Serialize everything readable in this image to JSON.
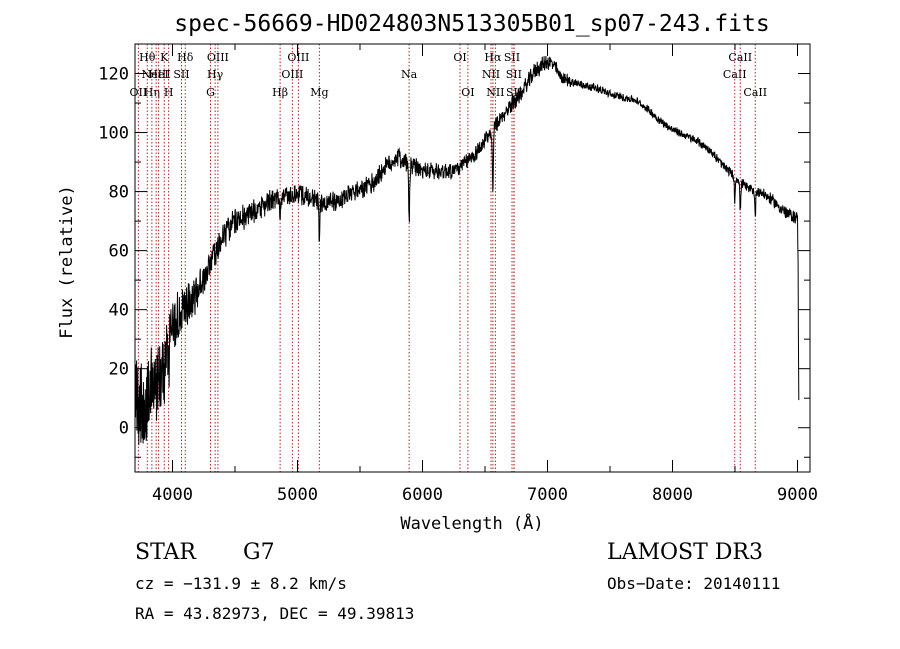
{
  "chart_data": {
    "type": "line",
    "title": "spec-56669-HD024803N513305B01_sp07-243.fits",
    "xlabel": "Wavelength (Å)",
    "ylabel": "Flux (relative)",
    "xlim": [
      3700,
      9100
    ],
    "ylim": [
      -15,
      130
    ],
    "xticks": [
      4000,
      5000,
      6000,
      7000,
      8000,
      9000
    ],
    "yticks": [
      0,
      20,
      40,
      60,
      80,
      100,
      120
    ],
    "grid": false,
    "series": [
      {
        "name": "spectrum",
        "anchors": [
          [
            3700,
            5
          ],
          [
            3740,
            10
          ],
          [
            3780,
            5
          ],
          [
            3820,
            12
          ],
          [
            3860,
            15
          ],
          [
            3900,
            20
          ],
          [
            3950,
            28
          ],
          [
            4000,
            33
          ],
          [
            4050,
            37
          ],
          [
            4100,
            40
          ],
          [
            4150,
            42
          ],
          [
            4200,
            46
          ],
          [
            4250,
            50
          ],
          [
            4300,
            55
          ],
          [
            4350,
            60
          ],
          [
            4400,
            65
          ],
          [
            4450,
            68
          ],
          [
            4500,
            70
          ],
          [
            4600,
            72
          ],
          [
            4700,
            74
          ],
          [
            4800,
            77
          ],
          [
            4900,
            78
          ],
          [
            5000,
            79
          ],
          [
            5100,
            78
          ],
          [
            5200,
            76
          ],
          [
            5300,
            77
          ],
          [
            5400,
            79
          ],
          [
            5500,
            80
          ],
          [
            5600,
            83
          ],
          [
            5700,
            88
          ],
          [
            5800,
            92
          ],
          [
            5900,
            89
          ],
          [
            6000,
            87
          ],
          [
            6100,
            87
          ],
          [
            6200,
            87
          ],
          [
            6300,
            88
          ],
          [
            6400,
            92
          ],
          [
            6500,
            97
          ],
          [
            6600,
            103
          ],
          [
            6700,
            109
          ],
          [
            6800,
            114
          ],
          [
            6900,
            121
          ],
          [
            7000,
            124
          ],
          [
            7050,
            123
          ],
          [
            7100,
            119
          ],
          [
            7200,
            117
          ],
          [
            7300,
            116
          ],
          [
            7400,
            115
          ],
          [
            7500,
            113
          ],
          [
            7600,
            112
          ],
          [
            7700,
            111
          ],
          [
            7800,
            108
          ],
          [
            7900,
            104
          ],
          [
            8000,
            101
          ],
          [
            8100,
            99
          ],
          [
            8200,
            97
          ],
          [
            8300,
            94
          ],
          [
            8400,
            89
          ],
          [
            8500,
            85
          ],
          [
            8600,
            81
          ],
          [
            8700,
            80
          ],
          [
            8800,
            77
          ],
          [
            8900,
            73
          ],
          [
            8950,
            72
          ],
          [
            9000,
            71
          ],
          [
            9005,
            55
          ],
          [
            9010,
            10
          ]
        ],
        "noise": [
          [
            3700,
            15
          ],
          [
            4000,
            9
          ],
          [
            4200,
            5
          ],
          [
            4500,
            4
          ],
          [
            5000,
            3
          ],
          [
            5800,
            3
          ],
          [
            6300,
            2.5
          ],
          [
            6600,
            2.5
          ],
          [
            7000,
            2.5
          ],
          [
            7300,
            1.2
          ],
          [
            8000,
            1.2
          ],
          [
            8500,
            1.5
          ],
          [
            9000,
            2
          ]
        ],
        "absorption_lines": [
          {
            "wavelength": 3934,
            "depth": 14
          },
          {
            "wavelength": 3969,
            "depth": 14
          },
          {
            "wavelength": 4861,
            "depth": 8
          },
          {
            "wavelength": 5175,
            "depth": 14
          },
          {
            "wavelength": 5893,
            "depth": 20
          },
          {
            "wavelength": 6563,
            "depth": 22
          },
          {
            "wavelength": 8498,
            "depth": 8
          },
          {
            "wavelength": 8542,
            "depth": 10
          },
          {
            "wavelength": 8662,
            "depth": 9
          }
        ]
      }
    ],
    "line_markers": [
      {
        "wavelength": 3727,
        "labels": [
          "OII"
        ],
        "row": 2
      },
      {
        "wavelength": 3798,
        "labels": [
          "Hθ"
        ],
        "row": 0
      },
      {
        "wavelength": 3835,
        "labels": [
          "Hη"
        ],
        "row": 2
      },
      {
        "wavelength": 3869,
        "labels": [
          "NeIII"
        ],
        "row": 1
      },
      {
        "wavelength": 3889,
        "labels": [
          "HeI"
        ],
        "row": 1
      },
      {
        "wavelength": 3934,
        "labels": [
          "K"
        ],
        "row": 0
      },
      {
        "wavelength": 3969,
        "labels": [
          "H"
        ],
        "row": 2
      },
      {
        "wavelength": 4072,
        "labels": [
          "SII"
        ],
        "row": 1
      },
      {
        "wavelength": 4102,
        "labels": [
          "Hδ"
        ],
        "row": 0
      },
      {
        "wavelength": 4304,
        "labels": [
          "G"
        ],
        "row": 2
      },
      {
        "wavelength": 4341,
        "labels": [
          "Hγ"
        ],
        "row": 1
      },
      {
        "wavelength": 4363,
        "labels": [
          "OIII"
        ],
        "row": 0
      },
      {
        "wavelength": 4861,
        "labels": [
          "Hβ"
        ],
        "row": 2
      },
      {
        "wavelength": 4959,
        "labels": [
          "OIII"
        ],
        "row": 1
      },
      {
        "wavelength": 5007,
        "labels": [
          "OIII"
        ],
        "row": 0
      },
      {
        "wavelength": 5175,
        "labels": [
          "Mg"
        ],
        "row": 2
      },
      {
        "wavelength": 5893,
        "labels": [
          "Na"
        ],
        "row": 1
      },
      {
        "wavelength": 6300,
        "labels": [
          "OI"
        ],
        "row": 0
      },
      {
        "wavelength": 6363,
        "labels": [
          "OI"
        ],
        "row": 2
      },
      {
        "wavelength": 6548,
        "labels": [
          "NII"
        ],
        "row": 1
      },
      {
        "wavelength": 6563,
        "labels": [
          "Hα"
        ],
        "row": 0
      },
      {
        "wavelength": 6583,
        "labels": [
          "NII"
        ],
        "row": 2
      },
      {
        "wavelength": 6716,
        "labels": [
          "SII"
        ],
        "row": 0
      },
      {
        "wavelength": 6731,
        "labels": [
          "SII"
        ],
        "row": 1
      },
      {
        "wavelength": 6733,
        "labels": [
          "SII"
        ],
        "row": 2
      },
      {
        "wavelength": 8498,
        "labels": [
          "CaII"
        ],
        "row": 1
      },
      {
        "wavelength": 8542,
        "labels": [
          "CaII"
        ],
        "row": 0
      },
      {
        "wavelength": 8662,
        "labels": [
          "CaII"
        ],
        "row": 2
      }
    ],
    "marker_color": "#b22222"
  },
  "info": {
    "object_class": "STAR",
    "subclass": "G7",
    "survey": "LAMOST DR3",
    "cz": "cz = −131.9 ± 8.2 km/s",
    "obs_date": "Obs−Date: 20140111",
    "coords": "RA =  43.82973, DEC =  49.39813"
  }
}
